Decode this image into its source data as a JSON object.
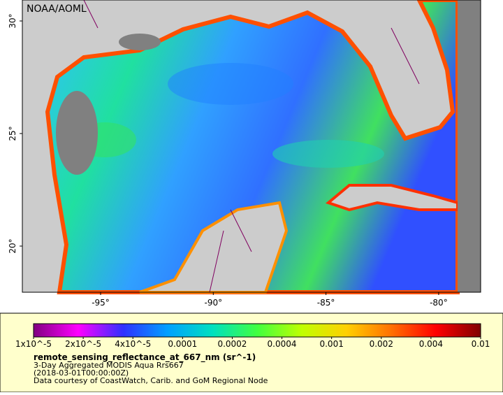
{
  "map": {
    "credit": "NOAA/AOML",
    "lat_labels": [
      "30°",
      "25°",
      "20°"
    ],
    "lon_labels": [
      "-95°",
      "-90°",
      "-85°",
      "-80°"
    ]
  },
  "legend": {
    "colorbar": {
      "labels": [
        "1x10^-5",
        "2x10^-5",
        "4x10^-5",
        "0.0001",
        "0.0002",
        "0.0004",
        "0.001",
        "0.002",
        "0.004",
        "0.01"
      ],
      "colors": [
        "#800080",
        "#ff00ff",
        "#3030ff",
        "#00a0ff",
        "#00e0c0",
        "#40ff40",
        "#c0ff00",
        "#ffd000",
        "#ff7000",
        "#ff0000",
        "#800000"
      ]
    },
    "title": "remote_sensing_reflectance_at_667_nm (sr^-1)",
    "lines": [
      "3-Day Aggregated MODIS Aqua Rrs667",
      "(2018-03-01T00:00:00Z)",
      "Data courtesy of CoastWatch, Carib. and GoM Regional Node"
    ]
  }
}
